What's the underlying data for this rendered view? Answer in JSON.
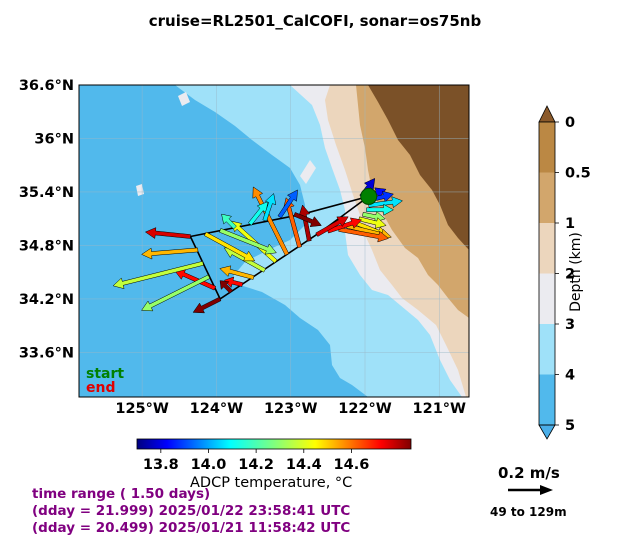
{
  "title": "cruise=RL2501_CalCOFI,   sonar=os75nb",
  "map": {
    "lon_range": [
      -125.85,
      -120.6
    ],
    "lat_range": [
      33.1,
      36.6
    ],
    "lon_ticks": [
      {
        "v": -125,
        "label": "125°W"
      },
      {
        "v": -124,
        "label": "124°W"
      },
      {
        "v": -123,
        "label": "123°W"
      },
      {
        "v": -122,
        "label": "122°W"
      },
      {
        "v": -121,
        "label": "121°W"
      }
    ],
    "lat_ticks": [
      {
        "v": 36.6,
        "label": "36.6°N"
      },
      {
        "v": 36.0,
        "label": "36°N"
      },
      {
        "v": 35.4,
        "label": "35.4°N"
      },
      {
        "v": 34.8,
        "label": "34.8°N"
      },
      {
        "v": 34.2,
        "label": "34.2°N"
      },
      {
        "v": 33.6,
        "label": "33.6°N"
      }
    ],
    "grid": true,
    "start_label": "start",
    "end_label": "end"
  },
  "chart_data": {
    "type": "quiver",
    "series_name": "ADCP velocity (49 to 129m)",
    "track": [
      [
        -124.35,
        34.9
      ],
      [
        -123.95,
        34.2
      ],
      [
        -122.6,
        34.95
      ],
      [
        -121.95,
        35.35
      ],
      [
        -122.85,
        35.15
      ],
      [
        -124.35,
        34.9
      ]
    ],
    "vectors": [
      {
        "lon": -122.05,
        "lat": 35.35,
        "u": 0.06,
        "v": 0.08,
        "t": 13.8
      },
      {
        "lon": -122.02,
        "lat": 35.33,
        "u": 0.1,
        "v": 0.04,
        "t": 13.85
      },
      {
        "lon": -121.98,
        "lat": 35.3,
        "u": 0.12,
        "v": 0.03,
        "t": 13.9
      },
      {
        "lon": -121.95,
        "lat": 35.25,
        "u": 0.15,
        "v": 0.02,
        "t": 14.1
      },
      {
        "lon": -121.98,
        "lat": 35.2,
        "u": 0.12,
        "v": 0.0,
        "t": 14.15
      },
      {
        "lon": -122.03,
        "lat": 35.15,
        "u": 0.1,
        "v": -0.02,
        "t": 14.3
      },
      {
        "lon": -122.08,
        "lat": 35.1,
        "u": 0.12,
        "v": -0.03,
        "t": 14.4
      },
      {
        "lon": -122.15,
        "lat": 35.06,
        "u": 0.15,
        "v": -0.06,
        "t": 14.45
      },
      {
        "lon": -122.25,
        "lat": 35.02,
        "u": 0.2,
        "v": -0.05,
        "t": 14.5
      },
      {
        "lon": -122.35,
        "lat": 34.98,
        "u": 0.22,
        "v": -0.04,
        "t": 14.6
      },
      {
        "lon": -122.5,
        "lat": 34.96,
        "u": 0.15,
        "v": 0.05,
        "t": 14.7
      },
      {
        "lon": -122.65,
        "lat": 34.92,
        "u": 0.14,
        "v": 0.08,
        "t": 14.75
      },
      {
        "lon": -122.75,
        "lat": 34.85,
        "u": -0.03,
        "v": 0.16,
        "t": 14.8
      },
      {
        "lon": -122.88,
        "lat": 34.78,
        "u": -0.06,
        "v": 0.22,
        "t": 14.6
      },
      {
        "lon": -123.05,
        "lat": 34.7,
        "u": -0.15,
        "v": 0.3,
        "t": 14.55
      },
      {
        "lon": -123.2,
        "lat": 34.62,
        "u": -0.2,
        "v": 0.18,
        "t": 14.4
      },
      {
        "lon": -123.35,
        "lat": 34.52,
        "u": -0.18,
        "v": 0.1,
        "t": 14.35
      },
      {
        "lon": -123.5,
        "lat": 34.44,
        "u": -0.15,
        "v": 0.04,
        "t": 14.5
      },
      {
        "lon": -123.65,
        "lat": 34.36,
        "u": -0.08,
        "v": 0.02,
        "t": 14.7
      },
      {
        "lon": -123.8,
        "lat": 34.28,
        "u": -0.05,
        "v": 0.05,
        "t": 14.85
      },
      {
        "lon": -123.95,
        "lat": 34.2,
        "u": -0.12,
        "v": -0.06,
        "t": 14.9
      },
      {
        "lon": -124.02,
        "lat": 34.32,
        "u": -0.18,
        "v": 0.08,
        "t": 14.7
      },
      {
        "lon": -124.1,
        "lat": 34.45,
        "u": -0.3,
        "v": -0.15,
        "t": 14.3
      },
      {
        "lon": -124.18,
        "lat": 34.6,
        "u": -0.4,
        "v": -0.1,
        "t": 14.35
      },
      {
        "lon": -124.25,
        "lat": 34.75,
        "u": -0.25,
        "v": -0.02,
        "t": 14.5
      },
      {
        "lon": -124.35,
        "lat": 34.9,
        "u": -0.2,
        "v": 0.02,
        "t": 14.75
      },
      {
        "lon": -124.15,
        "lat": 34.93,
        "u": 0.22,
        "v": -0.12,
        "t": 14.45
      },
      {
        "lon": -123.95,
        "lat": 34.97,
        "u": 0.25,
        "v": -0.1,
        "t": 14.3
      },
      {
        "lon": -123.75,
        "lat": 35.0,
        "u": -0.06,
        "v": 0.06,
        "t": 14.2
      },
      {
        "lon": -123.55,
        "lat": 35.04,
        "u": 0.08,
        "v": 0.1,
        "t": 14.15
      },
      {
        "lon": -123.35,
        "lat": 35.08,
        "u": 0.04,
        "v": 0.12,
        "t": 14.1
      },
      {
        "lon": -123.15,
        "lat": 35.12,
        "u": 0.08,
        "v": 0.12,
        "t": 13.95
      },
      {
        "lon": -122.95,
        "lat": 35.15,
        "u": 0.12,
        "v": -0.05,
        "t": 14.85
      }
    ]
  },
  "colorbar": {
    "label": "ADCP temperature, °C",
    "min": 13.7,
    "max": 14.85,
    "ticks": [
      {
        "v": 13.8,
        "label": "13.8"
      },
      {
        "v": 14.0,
        "label": "14.0"
      },
      {
        "v": 14.2,
        "label": "14.2"
      },
      {
        "v": 14.4,
        "label": "14.4"
      },
      {
        "v": 14.6,
        "label": "14.6"
      }
    ]
  },
  "depth_bar": {
    "label": "Depth (km)",
    "levels": [
      {
        "v": 0,
        "label": "0",
        "color": "#bb8844"
      },
      {
        "v": 0.5,
        "label": "0.5",
        "color": "#d2a66c"
      },
      {
        "v": 1,
        "label": "1",
        "color": "#ecd6bd"
      },
      {
        "v": 2,
        "label": "2",
        "color": "#ebebf0"
      },
      {
        "v": 3,
        "label": "3",
        "color": "#9fe1f9"
      },
      {
        "v": 4,
        "label": "4",
        "color": "#51b9ec"
      },
      {
        "v": 5,
        "label": "5",
        "color": ""
      }
    ]
  },
  "time_range": {
    "line1": "time range ( 1.50 days)",
    "line2": "(dday = 21.999) 2025/01/22 23:58:41 UTC",
    "line3": "(dday = 20.499) 2025/01/21 11:58:42 UTC"
  },
  "scale_arrow": {
    "label": "0.2 m/s",
    "value": 0.2
  },
  "depth_range": "49 to 129m",
  "colors": {
    "ocean_deep": "#51b9ec",
    "ocean_mid": "#9fe1f9",
    "shelf": "#ebebf0",
    "slope": "#ecd6bd",
    "land_low": "#d2a66c",
    "land_high": "#7b5128",
    "track": "#000000",
    "start": "#008000",
    "end": "#e00000",
    "time_text": "#800080"
  }
}
